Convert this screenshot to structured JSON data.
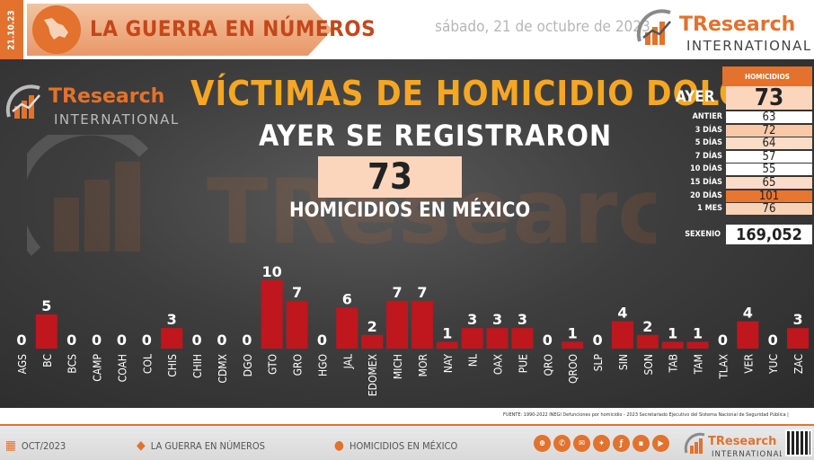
{
  "header": {
    "date_vertical": "21.10.23",
    "banner_title": "LA GUERRA EN NÚMEROS",
    "date_text": "sábado, 21 de octubre de 2023",
    "logo": {
      "main": "TResearch",
      "sub": "INTERNATIONAL"
    }
  },
  "main": {
    "title": "VÍCTIMAS DE HOMICIDIO DOLOSO",
    "subtitle": "AYER SE REGISTRARON",
    "total": "73",
    "total_caption": "HOMICIDIOS EN MÉXICO"
  },
  "stats": {
    "header": "HOMICIDIOS",
    "ayer_label": "AYER",
    "ayer_value": "73",
    "rows": [
      {
        "label": "ANTIER",
        "value": "63",
        "color": "#ffffff"
      },
      {
        "label": "3 DÍAS",
        "value": "72",
        "color": "#f9c8a6"
      },
      {
        "label": "5 DÍAS",
        "value": "64",
        "color": "#fbdcc6"
      },
      {
        "label": "7 DÍAS",
        "value": "57",
        "color": "#ffffff"
      },
      {
        "label": "10 DÍAS",
        "value": "55",
        "color": "#ffffff"
      },
      {
        "label": "15 DÍAS",
        "value": "65",
        "color": "#fbdcc6"
      },
      {
        "label": "20 DÍAS",
        "value": "101",
        "color": "#e8762f"
      },
      {
        "label": "1 MES",
        "value": "76",
        "color": "#f9d1b5"
      }
    ],
    "sexenio_label": "SEXENIO",
    "sexenio_value": "169,052"
  },
  "chart_data": {
    "type": "bar",
    "categories": [
      "AGS",
      "BC",
      "BCS",
      "CAMP",
      "COAH",
      "COL",
      "CHIS",
      "CHIH",
      "CDMX",
      "DGO",
      "GTO",
      "GRO",
      "HGO",
      "JAL",
      "EDOMEX",
      "MICH",
      "MOR",
      "NAY",
      "NL",
      "OAX",
      "PUE",
      "QRO",
      "QROO",
      "SLP",
      "SIN",
      "SON",
      "TAB",
      "TAM",
      "TLAX",
      "VER",
      "YUC",
      "ZAC"
    ],
    "values": [
      0,
      5,
      0,
      0,
      0,
      0,
      3,
      0,
      0,
      0,
      10,
      7,
      0,
      6,
      2,
      7,
      7,
      1,
      3,
      3,
      3,
      0,
      1,
      0,
      4,
      2,
      1,
      1,
      0,
      4,
      0,
      3
    ],
    "bar_color": "#c0161e",
    "ylim": [
      0,
      10
    ]
  },
  "source_note": "FUENTE: 1990-2022 INEGI Defunciones por homicidio - 2023 Secretariado Ejecutivo del Sistema Nacional de Seguridad Pública |",
  "footer": {
    "month": "OCT/2023",
    "section": "LA GUERRA EN NÚMEROS",
    "topic": "HOMICIDIOS EN MÉXICO",
    "logo": {
      "main": "TResearch",
      "sub": "INTERNATIONAL"
    },
    "social": [
      "web",
      "phone",
      "mail",
      "twitter",
      "facebook",
      "linkedin",
      "youtube"
    ]
  },
  "colors": {
    "accent": "#e2722d",
    "title": "#f5a623",
    "bar": "#c0161e"
  }
}
